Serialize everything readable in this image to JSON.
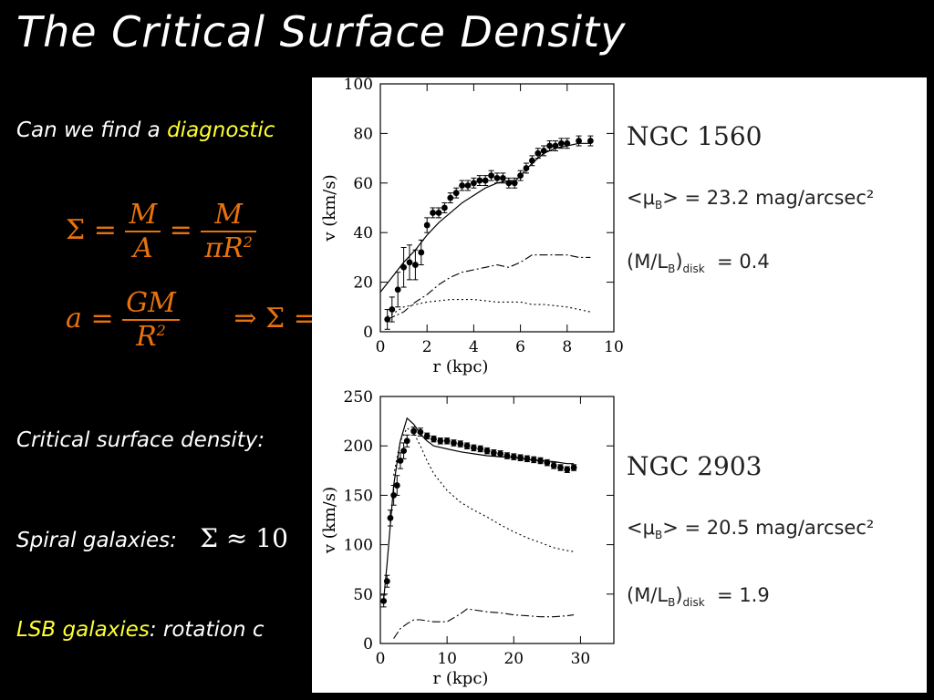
{
  "slide": {
    "title": "The Critical Surface Density",
    "line1_a": "Can we find a ",
    "line1_b": "diagnostic",
    "eq1": {
      "sigma": "Σ",
      "eq": "=",
      "M": "M",
      "A": "A",
      "piR2": "πR",
      "sq": "2"
    },
    "eq2": {
      "a": "a",
      "eq": "=",
      "GM": "GM",
      "R2": "R",
      "sq": "2",
      "implies": "⇒ Σ ="
    },
    "line2": "Critical surface density:",
    "line3_a": "Spiral galaxies:",
    "line3_b": "Σ ≈ 10",
    "line4_a": "LSB galaxies",
    "line4_b": ": rotation c"
  },
  "galaxy1": {
    "name": "NGC  1560",
    "mu": "<μ",
    "mu_sub": "B",
    "mu_val": ">  =  23.2  mag/arcsec²",
    "ml": "(M/L",
    "ml_sub": "B",
    "ml_close": ")",
    "ml_sub2": "disk",
    "ml_val": "=  0.4"
  },
  "galaxy2": {
    "name": "NGC  2903",
    "mu": "<μ",
    "mu_sub": "B",
    "mu_val": ">  =  20.5  mag/arcsec²",
    "ml": "(M/L",
    "ml_sub": "B",
    "ml_close": ")",
    "ml_sub2": "disk",
    "ml_val": "=  1.9"
  },
  "chart_data": [
    {
      "type": "scatter",
      "xlabel": "r (kpc)",
      "ylabel": "v (km/s)",
      "xlim": [
        0,
        10
      ],
      "ylim": [
        0,
        100
      ],
      "xticks": [
        0,
        2,
        4,
        6,
        8,
        10
      ],
      "yticks": [
        0,
        20,
        40,
        60,
        80,
        100
      ],
      "observed": {
        "x": [
          0.3,
          0.5,
          0.75,
          1.0,
          1.25,
          1.5,
          1.75,
          2.0,
          2.25,
          2.5,
          2.75,
          3.0,
          3.25,
          3.5,
          3.75,
          4.0,
          4.25,
          4.5,
          4.75,
          5.0,
          5.25,
          5.5,
          5.75,
          6.0,
          6.25,
          6.5,
          6.75,
          7.0,
          7.25,
          7.5,
          7.75,
          8.0,
          8.5,
          9.0
        ],
        "y": [
          5,
          9,
          17,
          26,
          28,
          27,
          32,
          43,
          48,
          48,
          50,
          54,
          56,
          59,
          59,
          60,
          61,
          61,
          63,
          62,
          62,
          60,
          60,
          63,
          66,
          69,
          72,
          73,
          75,
          75,
          76,
          76,
          77,
          77
        ],
        "err": [
          4,
          5,
          7,
          8,
          7,
          6,
          5,
          3,
          2,
          2,
          2,
          2,
          2,
          2,
          2,
          2,
          2,
          2,
          2,
          2,
          2,
          2,
          2,
          2,
          2,
          2,
          2,
          2,
          2,
          2,
          2,
          2,
          2,
          2
        ]
      },
      "model": {
        "x": [
          0,
          0.5,
          1,
          1.5,
          2,
          2.5,
          3,
          3.5,
          4,
          4.5,
          5,
          5.5,
          5.8,
          6,
          6.5,
          7,
          7.5,
          8,
          8.5,
          9
        ],
        "y": [
          16,
          22,
          28,
          33,
          39,
          44,
          48,
          52,
          55,
          58,
          60,
          61,
          61,
          63,
          68,
          72,
          74,
          75,
          76,
          76
        ]
      },
      "gas": {
        "x": [
          0.3,
          1,
          1.5,
          2,
          2.5,
          3,
          3.5,
          4,
          4.5,
          5,
          5.5,
          6,
          6.5,
          7,
          7.5,
          8,
          8.5,
          9
        ],
        "y": [
          5,
          8,
          12,
          15,
          19,
          22,
          24,
          25,
          26,
          27,
          26,
          28,
          31,
          31,
          31,
          31,
          30,
          30
        ]
      },
      "disk": {
        "x": [
          0.3,
          1,
          1.5,
          2,
          3,
          4,
          5,
          5.5,
          6,
          6.5,
          7,
          8,
          9
        ],
        "y": [
          6,
          10,
          11,
          12,
          13,
          13,
          12,
          12,
          12,
          11,
          11,
          10,
          8
        ]
      }
    },
    {
      "type": "scatter",
      "xlabel": "r (kpc)",
      "ylabel": "v (km/s)",
      "xlim": [
        0,
        35
      ],
      "ylim": [
        0,
        250
      ],
      "xticks": [
        0,
        10,
        20,
        30
      ],
      "yticks": [
        0,
        50,
        100,
        150,
        200,
        250
      ],
      "observed": {
        "x": [
          0.5,
          1,
          1.5,
          2,
          2.5,
          3,
          3.5,
          4,
          5,
          6,
          7,
          8,
          9,
          10,
          11,
          12,
          13,
          14,
          15,
          16,
          17,
          18,
          19,
          20,
          21,
          22,
          23,
          24,
          25,
          26,
          27,
          28,
          29
        ],
        "y": [
          43,
          63,
          127,
          150,
          160,
          185,
          195,
          205,
          215,
          214,
          210,
          207,
          205,
          205,
          203,
          202,
          200,
          198,
          197,
          195,
          193,
          192,
          190,
          189,
          188,
          187,
          186,
          185,
          183,
          180,
          178,
          176,
          178
        ],
        "err": [
          6,
          6,
          8,
          10,
          10,
          8,
          8,
          6,
          4,
          4,
          3,
          3,
          3,
          3,
          3,
          3,
          3,
          3,
          3,
          3,
          3,
          3,
          3,
          3,
          3,
          3,
          3,
          3,
          3,
          3,
          3,
          3,
          3
        ]
      },
      "model": {
        "x": [
          0.5,
          1,
          2,
          3,
          4,
          5,
          6,
          7,
          8,
          10,
          12,
          14,
          16,
          18,
          20,
          22,
          24,
          26,
          28,
          29
        ],
        "y": [
          45,
          80,
          160,
          205,
          228,
          222,
          212,
          205,
          200,
          197,
          194,
          192,
          190,
          189,
          188,
          186,
          185,
          184,
          182,
          182
        ]
      },
      "disk": {
        "x": [
          2,
          3,
          4,
          5,
          6,
          7,
          8,
          10,
          12,
          14,
          16,
          18,
          20,
          22,
          24,
          26,
          28,
          29
        ],
        "y": [
          170,
          205,
          218,
          213,
          200,
          185,
          172,
          155,
          143,
          135,
          128,
          120,
          113,
          107,
          102,
          97,
          94,
          93
        ]
      },
      "gas": {
        "x": [
          2,
          3,
          4,
          5,
          6,
          8,
          10,
          12,
          13,
          14,
          16,
          18,
          20,
          22,
          24,
          26,
          28,
          29
        ],
        "y": [
          5,
          15,
          20,
          24,
          24,
          22,
          22,
          30,
          35,
          34,
          32,
          31,
          29,
          28,
          27,
          27,
          28,
          29
        ]
      }
    }
  ]
}
